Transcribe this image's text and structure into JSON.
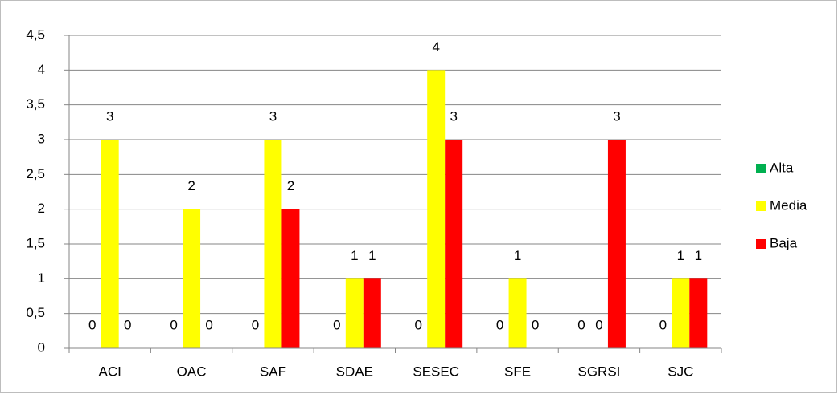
{
  "chart_data": {
    "type": "bar",
    "categories": [
      "ACI",
      "OAC",
      "SAF",
      "SDAE",
      "SESEC",
      "SFE",
      "SGRSI",
      "SJC"
    ],
    "series": [
      {
        "name": "Alta",
        "color": "#00b050",
        "values": [
          0,
          0,
          0,
          0,
          0,
          0,
          0,
          0
        ]
      },
      {
        "name": "Media",
        "color": "#ffff00",
        "values": [
          3,
          2,
          3,
          1,
          4,
          1,
          0,
          1
        ]
      },
      {
        "name": "Baja",
        "color": "#ff0000",
        "values": [
          0,
          0,
          2,
          1,
          3,
          0,
          3,
          1
        ]
      }
    ],
    "ylim": [
      0,
      4.5
    ],
    "yticks": [
      0,
      {
        "value": 0.5,
        "label": "0,5"
      },
      1,
      {
        "value": 1.5,
        "label": "1,5"
      },
      2,
      {
        "value": 2.5,
        "label": "2,5"
      },
      3,
      {
        "value": 3.5,
        "label": "3,5"
      },
      4,
      {
        "value": 4.5,
        "label": "4,5"
      }
    ],
    "grid": true,
    "legend": "right",
    "data_labels": true
  }
}
